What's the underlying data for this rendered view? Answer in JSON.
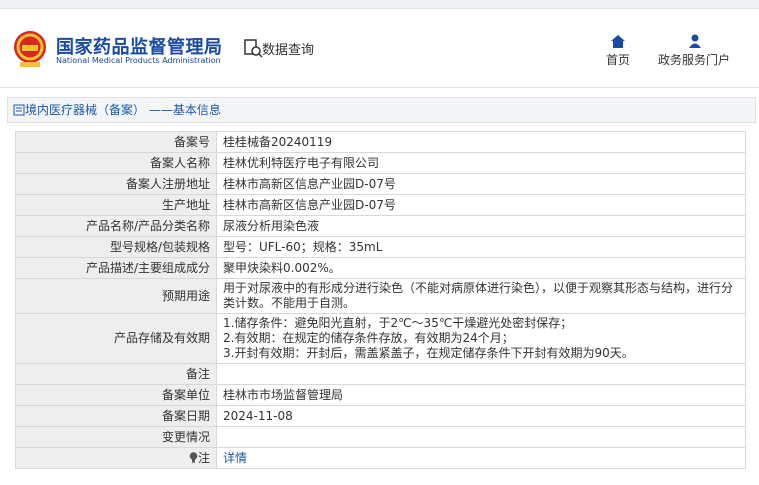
{
  "header": {
    "title": "国家药品监督管理局",
    "subtitle": "National Medical Products Administration",
    "search": "数据查询",
    "nav": [
      "首页",
      "政务服务门户"
    ]
  },
  "breadcrumb": "境内医疗器械（备案） ——基本信息",
  "table": {
    "rows": [
      {
        "label": "备案号",
        "value": "桂桂械备20240119"
      },
      {
        "label": "备案人名称",
        "value": "桂林优利特医疗电子有限公司"
      },
      {
        "label": "备案人注册地址",
        "value": "桂林市高新区信息产业园D-07号"
      },
      {
        "label": "生产地址",
        "value": "桂林市高新区信息产业园D-07号"
      },
      {
        "label": "产品名称/产品分类名称",
        "value": "尿液分析用染色液"
      },
      {
        "label": "型号规格/包装规格",
        "value": "型号：UFL-60；规格：35mL"
      },
      {
        "label": "产品描述/主要组成成分",
        "value": "聚甲炔染料0.002%。"
      },
      {
        "label": "预期用途",
        "value": "用于对尿液中的有形成分进行染色（不能对病原体进行染色），以便于观察其形态与结构，进行分类计数。不能用于自测。"
      },
      {
        "label": "产品存储及有效期",
        "value": [
          "1.储存条件：避免阳光直射，于2℃～35℃干燥避光处密封保存；",
          "2.有效期：在规定的储存条件存放，有效期为24个月；",
          "3.开封有效期：开封后，需盖紧盖子，在规定储存条件下开封有效期为90天。"
        ]
      },
      {
        "label": "备注"
      },
      {
        "label": "备案单位",
        "value": "桂林市市场监督管理局"
      },
      {
        "label": "备案日期",
        "value": "2024-11-08"
      },
      {
        "label": "变更情况"
      },
      {
        "label": "注",
        "value": "详情",
        "link": true,
        "hint": true
      }
    ]
  }
}
